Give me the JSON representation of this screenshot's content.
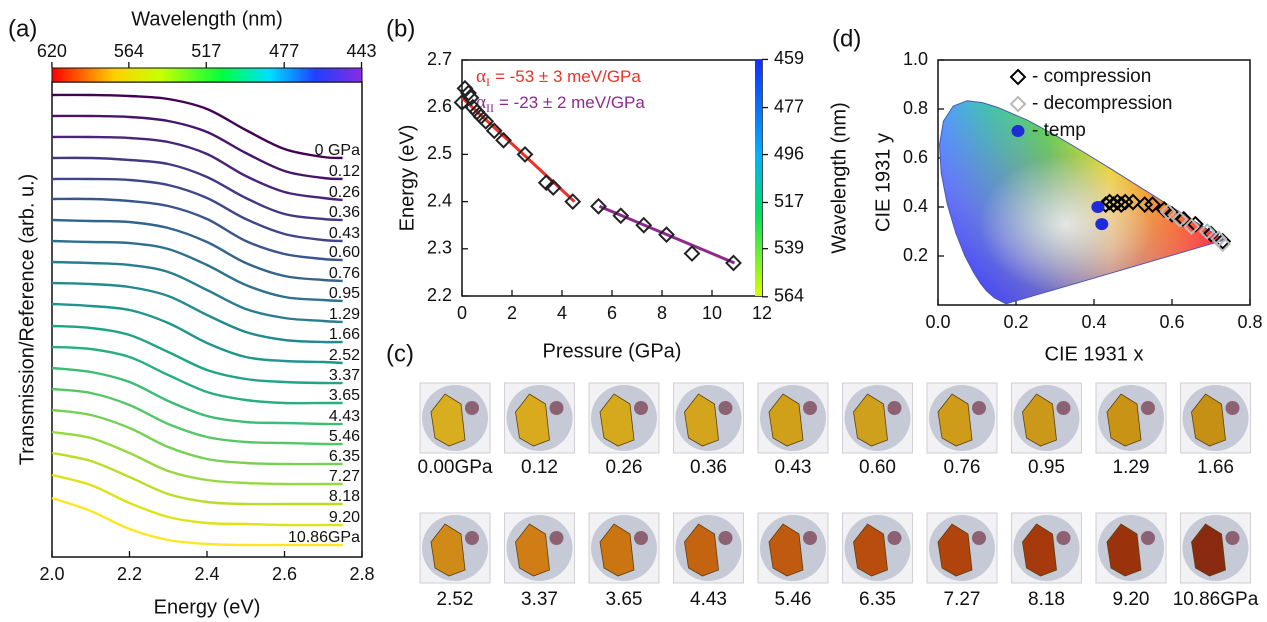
{
  "chart_data": [
    {
      "type": "line",
      "panel_label": "(a)",
      "xlabel": "Energy (eV)",
      "ylabel": "Transmission/Reference  (arb. u.)",
      "x": [
        2.0,
        2.1,
        2.2,
        2.3,
        2.4,
        2.5,
        2.6,
        2.7,
        2.75
      ],
      "xlim": [
        2.0,
        2.8
      ],
      "xticks": [
        {
          "value": 2,
          "label": "2.0"
        },
        2.2,
        2.4,
        2.6,
        2.8
      ],
      "ylim": [
        0,
        47.5
      ],
      "top_axis": {
        "label": "Wavelength (nm)",
        "ticks": [
          620,
          564,
          517,
          477,
          443
        ]
      },
      "series": [
        {
          "name": "0 GPa",
          "color": "#440154",
          "values": [
            46.2,
            46.2,
            46.1,
            45.8,
            44.8,
            42.7,
            40.8,
            40.0,
            39.9
          ]
        },
        {
          "name": "0.12",
          "color": "#481467",
          "values": [
            44.1,
            44.1,
            44.0,
            43.6,
            42.5,
            40.4,
            38.6,
            37.9,
            37.8
          ]
        },
        {
          "name": "0.26",
          "color": "#482576",
          "values": [
            42.0,
            42.0,
            41.9,
            41.5,
            40.3,
            38.1,
            36.5,
            35.9,
            35.7
          ]
        },
        {
          "name": "0.36",
          "color": "#453781",
          "values": [
            39.9,
            39.9,
            39.7,
            39.3,
            38.0,
            35.9,
            34.3,
            33.8,
            33.7
          ]
        },
        {
          "name": "0.43",
          "color": "#3f4788",
          "values": [
            37.8,
            37.8,
            37.7,
            37.2,
            35.9,
            33.8,
            32.3,
            31.7,
            31.6
          ]
        },
        {
          "name": "0.60",
          "color": "#39558c",
          "values": [
            35.8,
            35.8,
            35.6,
            35.1,
            33.8,
            31.6,
            30.3,
            29.8,
            29.7
          ]
        },
        {
          "name": "0.76",
          "color": "#32648e",
          "values": [
            33.7,
            33.6,
            33.5,
            32.9,
            31.5,
            29.4,
            28.1,
            27.7,
            27.6
          ]
        },
        {
          "name": "0.95",
          "color": "#2d718e",
          "values": [
            31.6,
            31.5,
            31.4,
            30.8,
            29.2,
            27.2,
            26.0,
            25.7,
            25.6
          ]
        },
        {
          "name": "1.29",
          "color": "#287d8e",
          "values": [
            29.5,
            29.4,
            29.2,
            28.5,
            26.7,
            24.8,
            23.9,
            23.6,
            23.5
          ]
        },
        {
          "name": "1.66",
          "color": "#238a8d",
          "values": [
            27.4,
            27.3,
            27.0,
            26.1,
            24.2,
            22.5,
            21.7,
            21.5,
            21.5
          ]
        },
        {
          "name": "2.52",
          "color": "#1f968b",
          "values": [
            25.3,
            25.1,
            24.7,
            23.4,
            21.4,
            20.0,
            19.6,
            19.5,
            19.4
          ]
        },
        {
          "name": "3.37",
          "color": "#20a386",
          "values": [
            23.1,
            22.9,
            22.2,
            20.5,
            18.7,
            17.8,
            17.5,
            17.4,
            17.4
          ]
        },
        {
          "name": "3.65",
          "color": "#29af7f",
          "values": [
            21.0,
            20.8,
            20.0,
            18.2,
            16.5,
            15.7,
            15.4,
            15.4,
            15.4
          ]
        },
        {
          "name": "4.43",
          "color": "#3dbc74",
          "values": [
            18.9,
            18.5,
            17.5,
            15.6,
            14.1,
            13.5,
            13.4,
            13.3,
            13.3
          ]
        },
        {
          "name": "5.46",
          "color": "#56c667",
          "values": [
            16.8,
            16.4,
            15.2,
            13.3,
            12.0,
            11.5,
            11.4,
            11.3,
            11.3
          ]
        },
        {
          "name": "6.35",
          "color": "#75d054",
          "values": [
            14.7,
            14.2,
            12.9,
            11.0,
            9.8,
            9.4,
            9.3,
            9.3,
            9.3
          ]
        },
        {
          "name": "7.27",
          "color": "#95d840",
          "values": [
            12.5,
            11.9,
            10.4,
            8.6,
            7.7,
            7.4,
            7.3,
            7.3,
            7.3
          ]
        },
        {
          "name": "8.18",
          "color": "#bade28",
          "values": [
            10.4,
            9.6,
            8.0,
            6.3,
            5.5,
            5.3,
            5.3,
            5.3,
            5.3
          ]
        },
        {
          "name": "9.20",
          "color": "#dde318",
          "values": [
            8.2,
            7.2,
            5.4,
            4.0,
            3.4,
            3.3,
            3.2,
            3.2,
            3.2
          ]
        },
        {
          "name": "10.86GPa",
          "color": "#fde725",
          "values": [
            5.9,
            4.6,
            2.8,
            1.7,
            1.3,
            1.2,
            1.2,
            1.2,
            1.2
          ]
        }
      ]
    },
    {
      "type": "scatter",
      "panel_label": "(b)",
      "xlabel": "Pressure (GPa)",
      "ylabel": "Energy (eV)",
      "x": [
        0,
        0.12,
        0.26,
        0.36,
        0.43,
        0.6,
        0.76,
        0.95,
        1.29,
        1.66,
        2.52,
        3.37,
        3.65,
        4.43,
        5.46,
        6.35,
        7.27,
        8.18,
        9.2,
        10.86
      ],
      "series": [
        {
          "color": "#222222",
          "marker": "diamond",
          "values": [
            2.61,
            2.64,
            2.63,
            2.62,
            2.6,
            2.59,
            2.58,
            2.57,
            2.55,
            2.53,
            2.5,
            2.44,
            2.43,
            2.4,
            2.39,
            2.37,
            2.35,
            2.33,
            2.29,
            2.27
          ]
        }
      ],
      "xlim": [
        0,
        12
      ],
      "xticks": [
        0,
        2,
        4,
        6,
        8,
        10,
        12
      ],
      "ylim": [
        2.2,
        2.7
      ],
      "yticks": [
        2.2,
        2.3,
        2.4,
        2.5,
        2.6,
        2.7
      ],
      "right_axis": {
        "label": "Wavelength (nm)",
        "ticks": [
          459,
          477,
          496,
          517,
          539,
          564
        ]
      },
      "fits": [
        {
          "symbol": "α",
          "subscript": "I",
          "text": "= -53 ± 3 meV/GPa",
          "color": "#e8322b",
          "x": [
            0,
            4.5
          ],
          "values": [
            2.62,
            2.4
          ]
        },
        {
          "symbol": "α",
          "subscript": "II",
          "text": "= -23 ± 2 meV/GPa",
          "color": "#8e2a8e",
          "x": [
            5.5,
            10.9
          ],
          "values": [
            2.39,
            2.27
          ]
        }
      ]
    },
    {
      "type": "scatter",
      "panel_label": "(d)",
      "xlabel": "CIE 1931 x",
      "ylabel": "CIE 1931 y",
      "xlim": [
        0,
        0.8
      ],
      "xticks": [
        {
          "value": 0,
          "label": "0.0"
        },
        0.2,
        0.4,
        0.6,
        0.8
      ],
      "ylim": [
        0,
        1
      ],
      "yticks": [
        0.2,
        0.4,
        0.6,
        0.8,
        {
          "value": 1,
          "label": "1.0"
        }
      ],
      "locus": {
        "x": [
          0.1741,
          0.144,
          0.1241,
          0.1096,
          0.0913,
          0.0687,
          0.0454,
          0.0235,
          0.0082,
          0.0039,
          0.0139,
          0.0389,
          0.0743,
          0.1142,
          0.1547,
          0.2296,
          0.3016,
          0.3731,
          0.4441,
          0.5125,
          0.5752,
          0.627,
          0.6915,
          0.719,
          0.7347
        ],
        "y": [
          0.005,
          0.0297,
          0.0578,
          0.0868,
          0.1327,
          0.2007,
          0.295,
          0.4127,
          0.5384,
          0.6548,
          0.7502,
          0.812,
          0.8338,
          0.8262,
          0.8059,
          0.7543,
          0.6923,
          0.6245,
          0.5547,
          0.4866,
          0.4242,
          0.3725,
          0.3083,
          0.2809,
          0.2653
        ]
      },
      "series": [
        {
          "name": "- compression",
          "color": "#000000",
          "marker": "diamond",
          "x": [
            0.43,
            0.44,
            0.45,
            0.46,
            0.47,
            0.48,
            0.5,
            0.53,
            0.55,
            0.58,
            0.6,
            0.63,
            0.66,
            0.7,
            0.73
          ],
          "values": [
            0.41,
            0.42,
            0.41,
            0.42,
            0.41,
            0.42,
            0.42,
            0.41,
            0.41,
            0.39,
            0.37,
            0.35,
            0.33,
            0.29,
            0.26
          ]
        },
        {
          "name": "- decompression",
          "color": "#b8b8b8",
          "marker": "diamond",
          "x": [
            0.59,
            0.62,
            0.65,
            0.69,
            0.72,
            0.73
          ],
          "values": [
            0.38,
            0.35,
            0.32,
            0.3,
            0.27,
            0.25
          ]
        },
        {
          "name": "- temp",
          "color": "#1f2bd6",
          "marker": "circle",
          "x": [
            0.41,
            0.42
          ],
          "values": [
            0.4,
            0.33
          ]
        }
      ]
    }
  ],
  "photo_panel": {
    "label": "(c)",
    "photos": [
      {
        "caption": "0.00GPa",
        "color": "#d8ae20"
      },
      {
        "caption": "0.12",
        "color": "#d9aa1e"
      },
      {
        "caption": "0.26",
        "color": "#d6a91c"
      },
      {
        "caption": "0.36",
        "color": "#d3a41c"
      },
      {
        "caption": "0.43",
        "color": "#d0a01a"
      },
      {
        "caption": "0.60",
        "color": "#cfa01c"
      },
      {
        "caption": "0.76",
        "color": "#cf9c1a"
      },
      {
        "caption": "0.95",
        "color": "#cc981a"
      },
      {
        "caption": "1.29",
        "color": "#c99416"
      },
      {
        "caption": "1.66",
        "color": "#c69014"
      },
      {
        "caption": "2.52",
        "color": "#d08a18"
      },
      {
        "caption": "3.37",
        "color": "#cf7d14"
      },
      {
        "caption": "3.65",
        "color": "#cb7412"
      },
      {
        "caption": "4.43",
        "color": "#c46410"
      },
      {
        "caption": "5.46",
        "color": "#c05a10"
      },
      {
        "caption": "6.35",
        "color": "#b84d0e"
      },
      {
        "caption": "7.27",
        "color": "#b0440c"
      },
      {
        "caption": "8.18",
        "color": "#a63a0c"
      },
      {
        "caption": "9.20",
        "color": "#9a320c"
      },
      {
        "caption": "10.86GPa",
        "color": "#8a2a10"
      }
    ]
  }
}
